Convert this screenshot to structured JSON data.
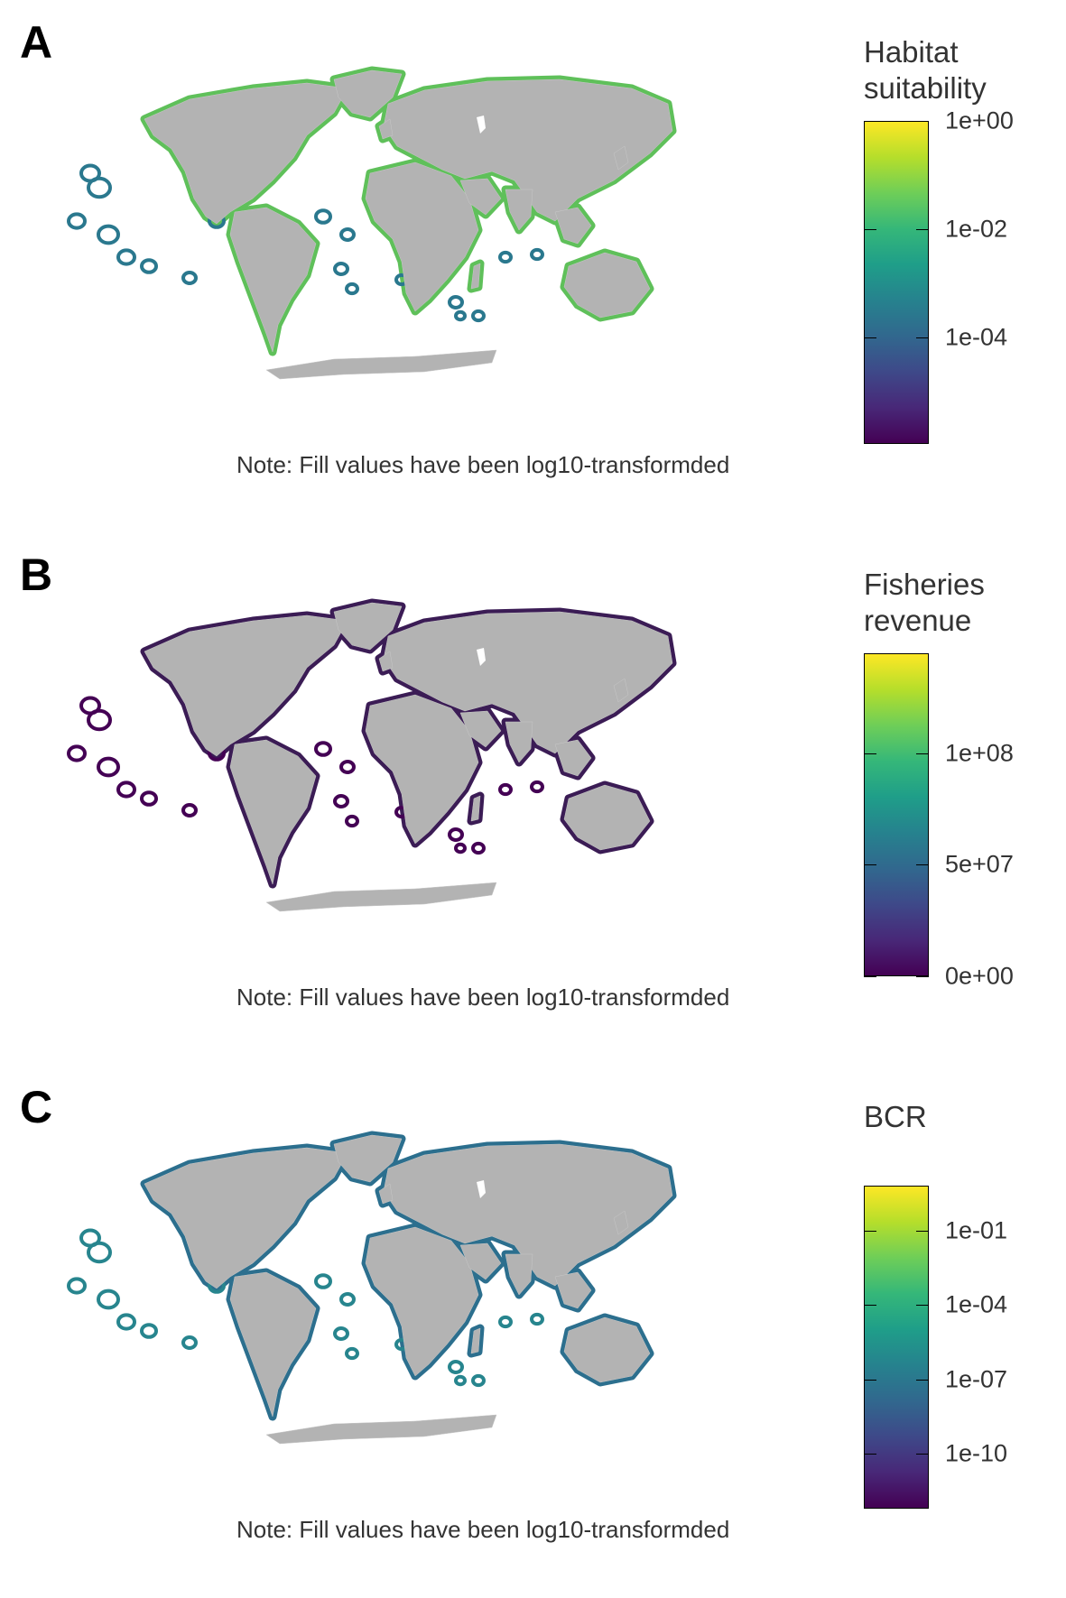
{
  "panels": [
    {
      "letter": "A",
      "legend_title_line1": "Habitat",
      "legend_title_line2": "suitability",
      "ticks": [
        "1e+00",
        "1e-02",
        "1e-04"
      ],
      "tick_positions": [
        0.0,
        0.335,
        0.67
      ],
      "note": "Note: Fill values have been log10-transformded",
      "coast_color": "#5fc05a",
      "island_color": "#2a788e"
    },
    {
      "letter": "B",
      "legend_title_line1": "Fisheries",
      "legend_title_line2": "revenue",
      "ticks": [
        "1e+08",
        "5e+07",
        "0e+00"
      ],
      "tick_positions": [
        0.31,
        0.655,
        1.0
      ],
      "note": "Note: Fill values have been log10-transformded",
      "coast_color": "#3b1c55",
      "island_color": "#440154"
    },
    {
      "letter": "C",
      "legend_title_line1": "BCR",
      "legend_title_line2": "",
      "ticks": [
        "1e-01",
        "1e-04",
        "1e-07",
        "1e-10"
      ],
      "tick_positions": [
        0.14,
        0.37,
        0.6,
        0.83
      ],
      "note": "Note: Fill values have been log10-transformded",
      "coast_color": "#2c6f8e",
      "island_color": "#27858e"
    }
  ],
  "colors": {
    "land": "#b3b3b3",
    "viridis": [
      "#fde725",
      "#b5de2b",
      "#6ece58",
      "#35b779",
      "#1f9e89",
      "#26828e",
      "#31688e",
      "#3e4989",
      "#482878",
      "#440154"
    ]
  }
}
